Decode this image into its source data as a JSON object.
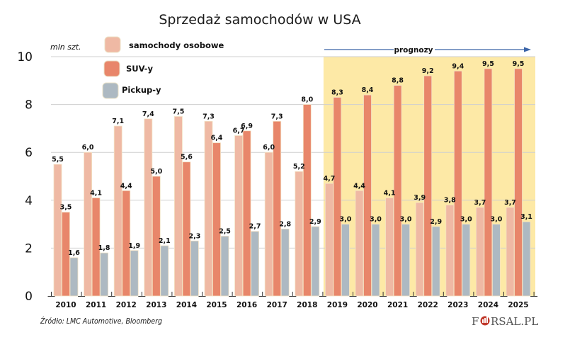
{
  "chart_data": {
    "type": "bar",
    "title": "Sprzedaż samochodów w USA",
    "ylabel": "mln szt.",
    "xlabel": "",
    "ylim": [
      0,
      10
    ],
    "yticks": [
      0,
      2,
      4,
      6,
      8,
      10
    ],
    "ytick_labels": [
      "0",
      "2",
      "4",
      "6",
      "8",
      "10"
    ],
    "grid": true,
    "legend_position": "top-left",
    "categories": [
      "2010",
      "2011",
      "2012",
      "2013",
      "2014",
      "2015",
      "2016",
      "2017",
      "2018",
      "2019",
      "2020",
      "2021",
      "2022",
      "2023",
      "2024",
      "2025"
    ],
    "series": [
      {
        "name": "samochody osobowe",
        "color": "#efb9a4",
        "values": [
          5.5,
          6.0,
          7.1,
          7.4,
          7.5,
          7.3,
          6.7,
          6.0,
          5.2,
          4.7,
          4.4,
          4.1,
          3.9,
          3.8,
          3.7,
          3.7
        ],
        "labels": [
          "5,5",
          "6,0",
          "7,1",
          "7,4",
          "7,5",
          "7,3",
          "6,7",
          "6,0",
          "5,2",
          "4,7",
          "4,4",
          "4,1",
          "3,9",
          "3,8",
          "3,7",
          "3,7"
        ]
      },
      {
        "name": "SUV-y",
        "color": "#e8866a",
        "values": [
          3.5,
          4.1,
          4.4,
          5.0,
          5.6,
          6.4,
          6.9,
          7.3,
          8.0,
          8.3,
          8.4,
          8.8,
          9.2,
          9.4,
          9.5,
          9.5
        ],
        "labels": [
          "3,5",
          "4,1",
          "4,4",
          "5,0",
          "5,6",
          "6,4",
          "6,9",
          "7,3",
          "8,0",
          "8,3",
          "8,4",
          "8,8",
          "9,2",
          "9,4",
          "9,5",
          "9,5"
        ]
      },
      {
        "name": "Pickup-y",
        "color": "#adb9c2",
        "values": [
          1.6,
          1.8,
          1.9,
          2.1,
          2.3,
          2.5,
          2.7,
          2.8,
          2.9,
          3.0,
          3.0,
          3.0,
          2.9,
          3.0,
          3.0,
          3.1
        ],
        "labels": [
          "1,6",
          "1,8",
          "1,9",
          "2,1",
          "2,3",
          "2,5",
          "2,7",
          "2,8",
          "2,9",
          "3,0",
          "3,0",
          "3,0",
          "2,9",
          "3,0",
          "3,0",
          "3,1"
        ]
      }
    ],
    "annotations": [
      {
        "text": "prognozy",
        "type": "forecast-range",
        "from": "2019",
        "to": "2025",
        "highlight_color": "#fde9a6",
        "arrow_color": "#3a64a8"
      }
    ],
    "source": "Źródło: LMC Automotive, Bloomberg"
  },
  "branding": {
    "logo_text_left": "F",
    "logo_text_right": "RSAL.PL"
  }
}
